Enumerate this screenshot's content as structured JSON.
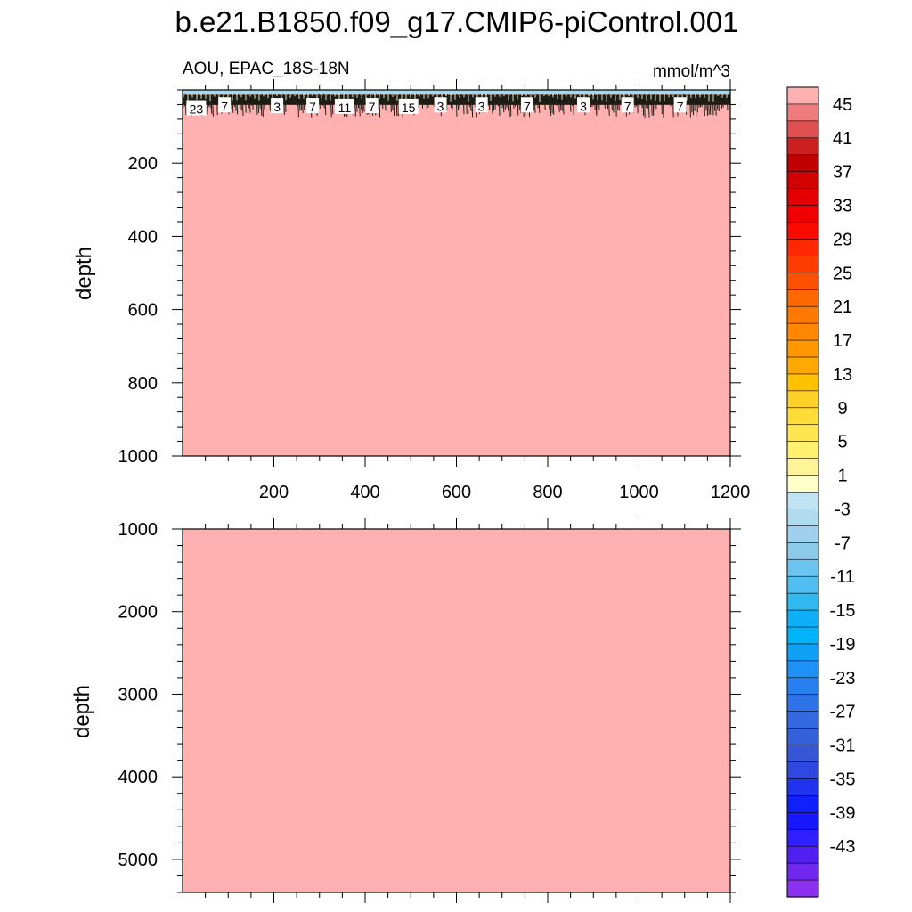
{
  "chart_data": {
    "type": "heatmap",
    "title": "b.e21.B1850.f09_g17.CMIP6-piControl.001",
    "subtitle_left": "AOU, EPAC_18S-18N",
    "subtitle_right": "mmol/m^3",
    "fill_color": "#ffb0b0",
    "panels": [
      {
        "id": "upper",
        "ylabel": "depth",
        "xlim": [
          0,
          1200
        ],
        "ylim": [
          0,
          1000
        ],
        "y_reversed": true,
        "x_tick_labels": [
          "200",
          "400",
          "600",
          "800",
          "1000",
          "1200"
        ],
        "x_tick_values": [
          200,
          400,
          600,
          800,
          1000,
          1200
        ],
        "y_tick_labels": [
          "200",
          "400",
          "600",
          "800",
          "1000"
        ],
        "y_tick_values": [
          200,
          400,
          600,
          800,
          1000
        ],
        "surface_band_depth": 75,
        "contour_labels": [
          {
            "text": "23",
            "x": 30,
            "depth": 50
          },
          {
            "text": "7",
            "x": 92,
            "depth": 42
          },
          {
            "text": "3",
            "x": 207,
            "depth": 44
          },
          {
            "text": "7",
            "x": 285,
            "depth": 44
          },
          {
            "text": "11",
            "x": 355,
            "depth": 46
          },
          {
            "text": "7",
            "x": 415,
            "depth": 44
          },
          {
            "text": "15",
            "x": 495,
            "depth": 46
          },
          {
            "text": "3",
            "x": 565,
            "depth": 42
          },
          {
            "text": "3",
            "x": 655,
            "depth": 42
          },
          {
            "text": "7",
            "x": 755,
            "depth": 42
          },
          {
            "text": "3",
            "x": 878,
            "depth": 42
          },
          {
            "text": "7",
            "x": 975,
            "depth": 42
          },
          {
            "text": "7",
            "x": 1090,
            "depth": 42
          }
        ]
      },
      {
        "id": "lower",
        "ylabel": "depth",
        "xlim": [
          0,
          1200
        ],
        "ylim": [
          1000,
          5400
        ],
        "y_reversed": true,
        "y_tick_labels": [
          "1000",
          "2000",
          "3000",
          "4000",
          "5000"
        ],
        "y_tick_values": [
          1000,
          2000,
          3000,
          4000,
          5000
        ]
      }
    ],
    "colorbar": {
      "labels": [
        "45",
        "41",
        "37",
        "33",
        "29",
        "25",
        "21",
        "17",
        "13",
        "9",
        "5",
        "1",
        "-3",
        "-7",
        "-11",
        "-15",
        "-19",
        "-23",
        "-27",
        "-31",
        "-35",
        "-39",
        "-43"
      ],
      "colors": [
        "#ffb0b0",
        "#ee7c7c",
        "#e05050",
        "#cc2020",
        "#c00000",
        "#d20000",
        "#e40000",
        "#f00000",
        "#fa0a00",
        "#ff2800",
        "#ff3c00",
        "#ff5000",
        "#ff6800",
        "#ff7800",
        "#ff8800",
        "#ff9800",
        "#ffa800",
        "#ffc000",
        "#ffd028",
        "#ffdc38",
        "#ffe650",
        "#fff070",
        "#fff49a",
        "#ffffc8",
        "#c0e4f4",
        "#b0dcf0",
        "#a0d0ee",
        "#8ccaea",
        "#6cc4f0",
        "#50bef0",
        "#30b8f0",
        "#10b0f8",
        "#00b4fa",
        "#10a0f8",
        "#1e90f8",
        "#2880f0",
        "#2e74e8",
        "#3268e0",
        "#3460da",
        "#3656d8",
        "#3048e0",
        "#2034f0",
        "#1020f8",
        "#1818ff",
        "#3020ff",
        "#5020f0",
        "#7028ee",
        "#8a30ee"
      ]
    }
  }
}
